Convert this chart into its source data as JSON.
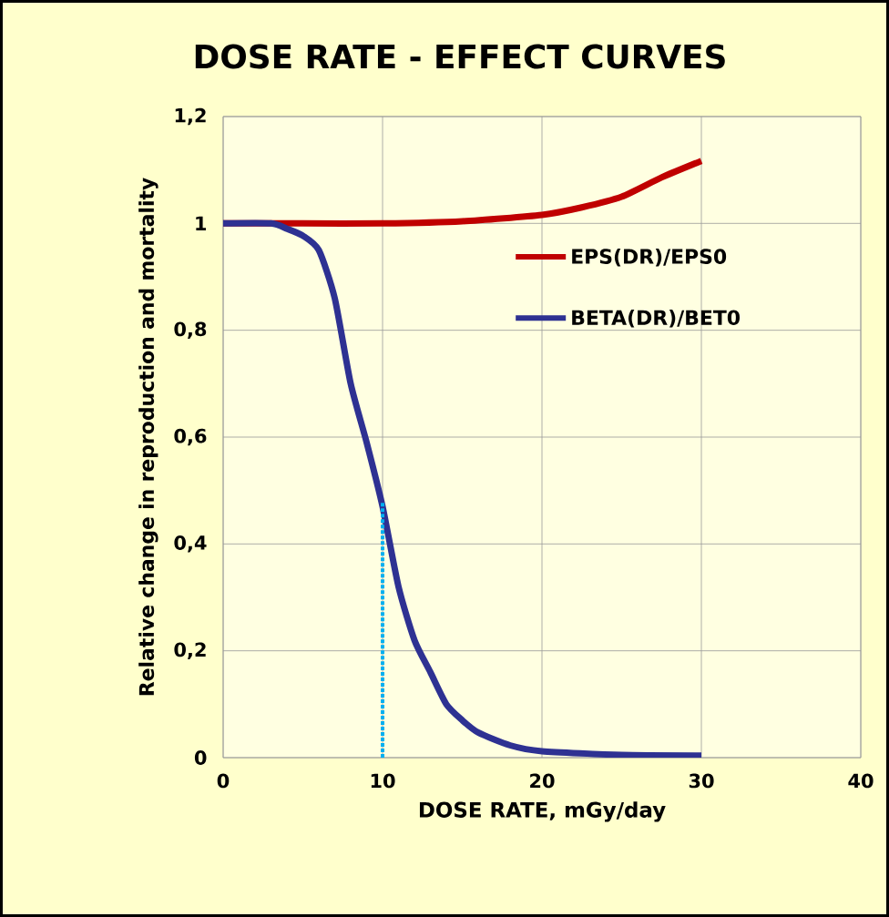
{
  "chart_data": {
    "type": "line",
    "title": "DOSE RATE -  EFFECT CURVES",
    "xlabel": "DOSE RATE, mGy/day",
    "ylabel": "Relative change in reproduction and mortality",
    "xlim": [
      0,
      40
    ],
    "xticks": [
      0,
      10,
      20,
      30,
      40
    ],
    "ylim": [
      0,
      1.2
    ],
    "yticks": [
      0,
      {
        "value": 0.2,
        "label": "0,2"
      },
      {
        "value": 0.4,
        "label": "0,4"
      },
      {
        "value": 0.6,
        "label": "0,6"
      },
      {
        "value": 0.8,
        "label": "0,8"
      },
      1,
      {
        "value": 1.2,
        "label": "1,2"
      }
    ],
    "grid": true,
    "legend": "right",
    "marker": "none",
    "line_style": "solid",
    "series": [
      {
        "name": "EPS(DR)/EPS0",
        "color": "#c00000",
        "x": [
          0,
          5,
          10,
          15,
          20,
          22.5,
          25,
          27.5,
          30
        ],
        "values": [
          1,
          1,
          1,
          1.004,
          1.016,
          1.03,
          1.05,
          1.086,
          1.117
        ]
      },
      {
        "name": "BETA(DR)/BET0",
        "color": "#2e3192",
        "x": [
          0,
          3,
          4,
          5,
          6,
          7,
          8,
          9,
          10,
          11,
          12,
          13,
          14,
          15,
          16,
          18,
          20,
          25,
          30
        ],
        "values": [
          1,
          1,
          0.99,
          0.977,
          0.95,
          0.86,
          0.7,
          0.59,
          0.47,
          0.32,
          0.22,
          0.16,
          0.1,
          0.07,
          0.047,
          0.023,
          0.012,
          0.005,
          0.004
        ]
      },
      {
        "color": "#00b0f0",
        "line_style": "dotted",
        "x": [
          10,
          10
        ],
        "values": [
          0,
          0.48
        ]
      }
    ]
  }
}
